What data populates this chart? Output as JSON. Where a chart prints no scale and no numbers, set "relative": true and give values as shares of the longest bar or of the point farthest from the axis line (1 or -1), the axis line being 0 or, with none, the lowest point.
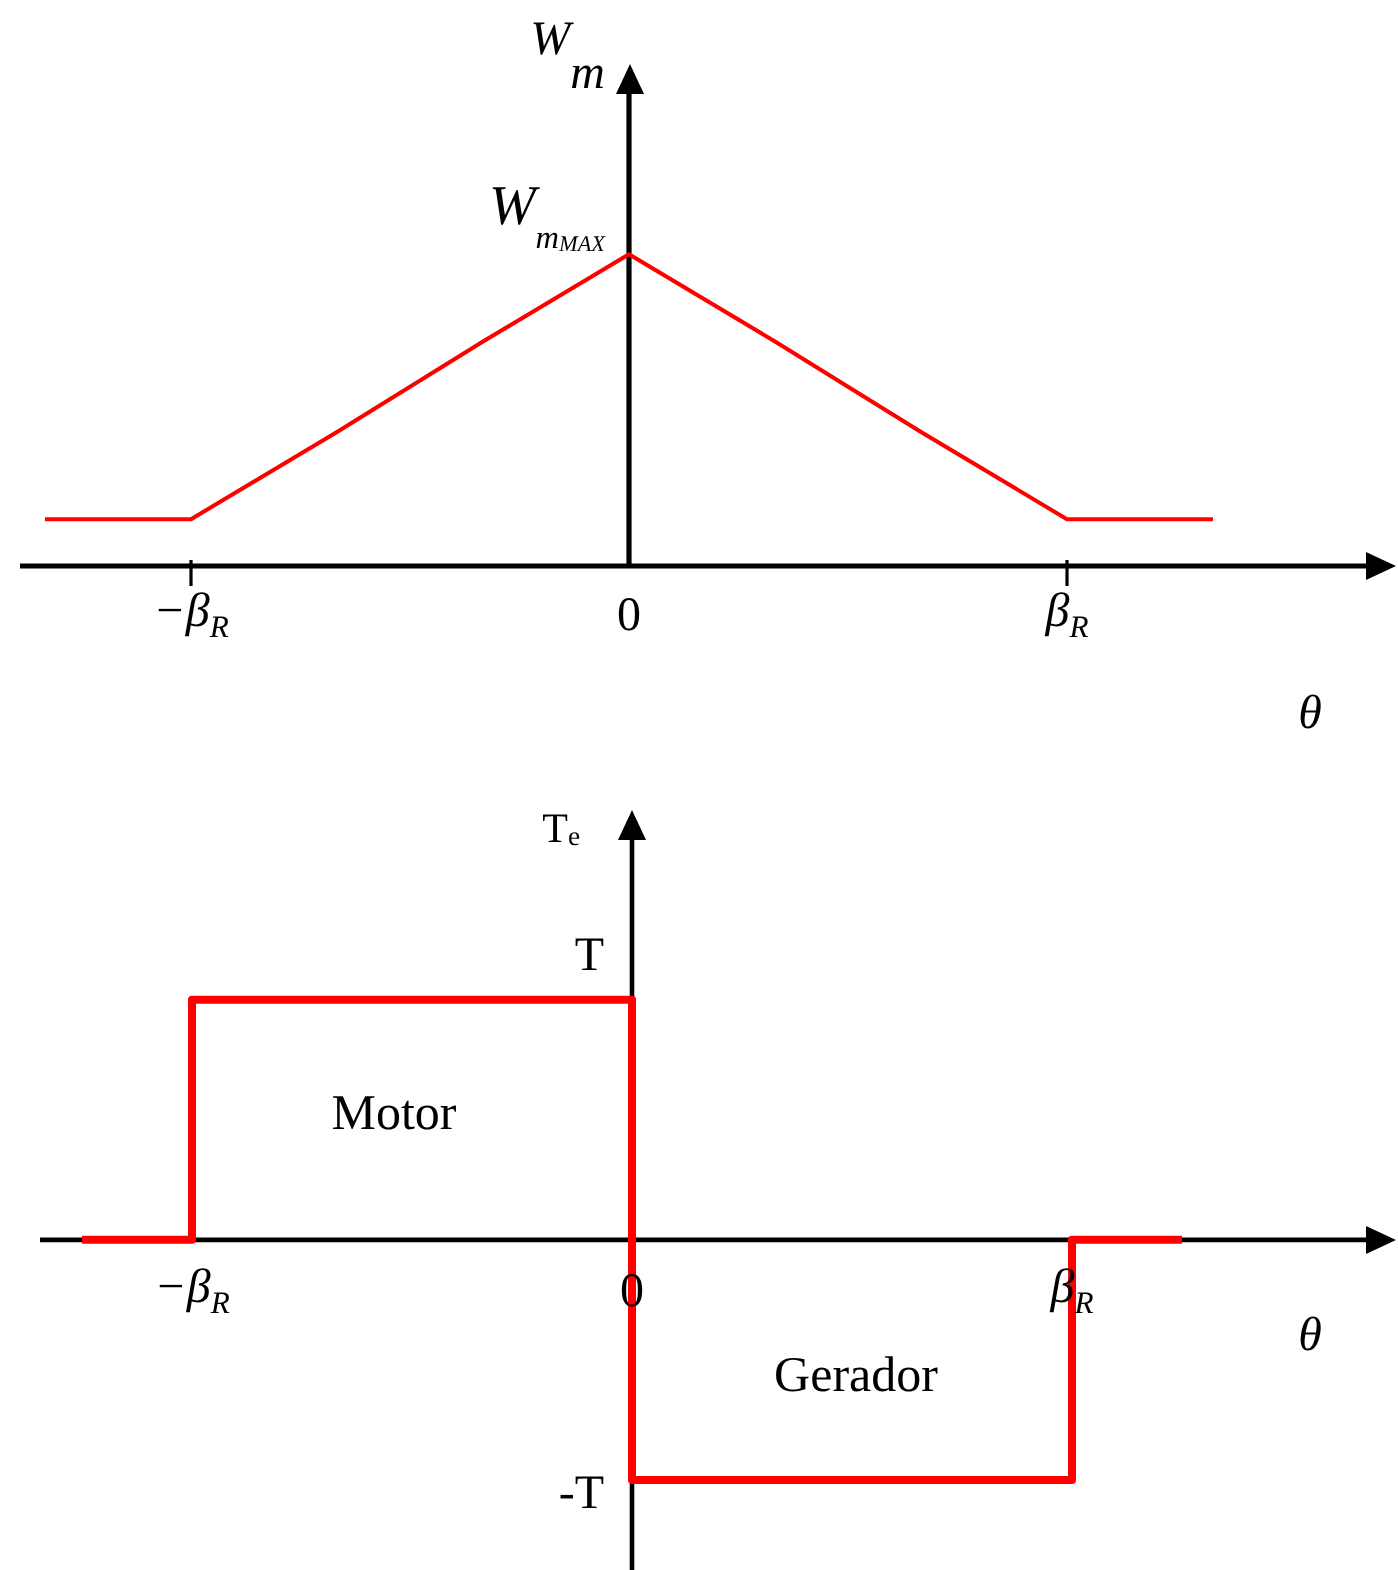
{
  "chart_data": [
    {
      "type": "line",
      "xlabel": "θ",
      "ylabel": "W$_{m}$",
      "relative": true,
      "marker": "none",
      "line_style": "solid",
      "categories": [
        null,
        "−β$_{R}$",
        null,
        null,
        "0",
        null,
        null,
        "β$_{R}$",
        null
      ],
      "series": [
        {
          "color": "#ff0000",
          "values": [
            0.15,
            0.15,
            0.43,
            0.72,
            1,
            0.72,
            0.43,
            0.15,
            0.15
          ]
        }
      ],
      "annotations": [
        {
          "text": "W$_{m}$$_{MAX}$",
          "x": "0",
          "y": 1
        }
      ]
    },
    {
      "type": "step",
      "xlabel": "θ",
      "ylabel": "T$_{e}$",
      "relative": true,
      "marker": "none",
      "line_style": "solid",
      "categories": [
        null,
        "−β$_{R}$",
        null,
        null,
        null,
        "0",
        null,
        null,
        null,
        "β$_{R}$",
        null
      ],
      "series": [
        {
          "color": "#ff0000",
          "values": [
            0,
            1,
            1,
            1,
            1,
            -1,
            -1,
            -1,
            -1,
            0,
            0
          ]
        }
      ],
      "annotations": [
        {
          "text": "T",
          "y": 1
        },
        "-T",
        "Motor",
        "Gerador"
      ]
    }
  ]
}
